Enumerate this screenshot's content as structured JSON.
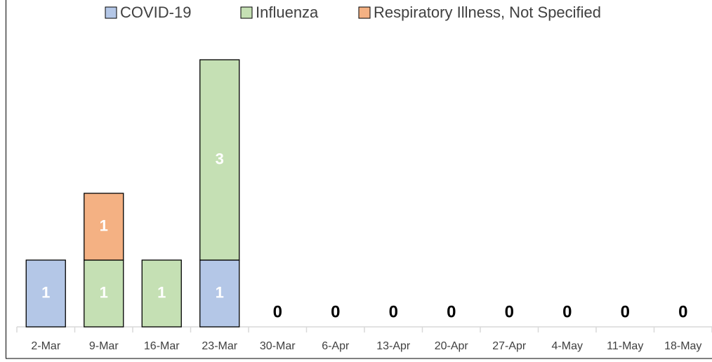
{
  "chart_data": {
    "type": "stacked_bar",
    "categories": [
      "2-Mar",
      "9-Mar",
      "16-Mar",
      "23-Mar",
      "30-Mar",
      "6-Apr",
      "13-Apr",
      "20-Apr",
      "27-Apr",
      "4-May",
      "11-May",
      "18-May"
    ],
    "series": [
      {
        "name": "COVID-19",
        "color": "#b4c7e7",
        "values": [
          1,
          0,
          0,
          1,
          0,
          0,
          0,
          0,
          0,
          0,
          0,
          0
        ]
      },
      {
        "name": "Influenza",
        "color": "#c5e0b4",
        "values": [
          0,
          1,
          1,
          3,
          0,
          0,
          0,
          0,
          0,
          0,
          0,
          0
        ]
      },
      {
        "name": "Respiratory Illness, Not Specified",
        "color": "#f4b183",
        "values": [
          0,
          1,
          0,
          0,
          0,
          0,
          0,
          0,
          0,
          0,
          0,
          0
        ]
      }
    ],
    "ylim": [
      0,
      4
    ],
    "legend": "top"
  }
}
